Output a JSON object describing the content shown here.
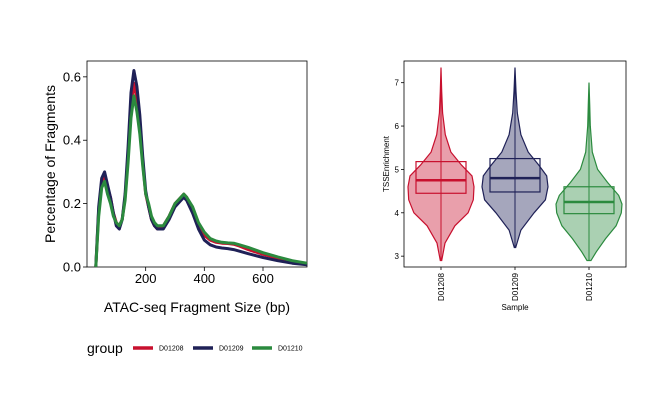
{
  "colors": {
    "D01208": "#c8102e",
    "D01209": "#1f2157",
    "D01210": "#2b8a3e"
  },
  "legend": {
    "title": "group",
    "items": [
      "D01208",
      "D01209",
      "D01210"
    ]
  },
  "chart_data": [
    {
      "type": "line",
      "title": "",
      "xlabel": "ATAC-seq Fragment Size (bp)",
      "ylabel": "Percentage of Fragments",
      "xlim": [
        0,
        750
      ],
      "ylim": [
        0,
        0.65
      ],
      "xticks": [
        "200",
        "400",
        "600"
      ],
      "yticks": [
        "0.0",
        "0.2",
        "0.4",
        "0.6"
      ],
      "x": [
        30,
        40,
        50,
        60,
        70,
        80,
        90,
        100,
        110,
        120,
        130,
        140,
        150,
        160,
        170,
        180,
        190,
        200,
        210,
        220,
        230,
        240,
        260,
        280,
        300,
        320,
        330,
        340,
        360,
        380,
        400,
        420,
        440,
        460,
        480,
        500,
        520,
        550,
        600,
        650,
        700,
        750
      ],
      "series": [
        {
          "name": "D01208",
          "values": [
            0.0,
            0.18,
            0.27,
            0.29,
            0.25,
            0.22,
            0.17,
            0.14,
            0.13,
            0.15,
            0.22,
            0.35,
            0.51,
            0.58,
            0.53,
            0.45,
            0.33,
            0.23,
            0.19,
            0.15,
            0.13,
            0.12,
            0.13,
            0.16,
            0.2,
            0.22,
            0.23,
            0.22,
            0.18,
            0.13,
            0.1,
            0.085,
            0.078,
            0.075,
            0.074,
            0.072,
            0.066,
            0.055,
            0.04,
            0.028,
            0.018,
            0.01
          ]
        },
        {
          "name": "D01209",
          "values": [
            0.0,
            0.19,
            0.28,
            0.3,
            0.26,
            0.22,
            0.17,
            0.13,
            0.12,
            0.15,
            0.23,
            0.38,
            0.55,
            0.62,
            0.57,
            0.48,
            0.35,
            0.24,
            0.19,
            0.15,
            0.13,
            0.12,
            0.12,
            0.15,
            0.19,
            0.21,
            0.22,
            0.21,
            0.17,
            0.12,
            0.085,
            0.07,
            0.063,
            0.06,
            0.058,
            0.055,
            0.05,
            0.042,
            0.03,
            0.02,
            0.012,
            0.007
          ]
        },
        {
          "name": "D01210",
          "values": [
            0.0,
            0.16,
            0.25,
            0.27,
            0.23,
            0.2,
            0.16,
            0.14,
            0.13,
            0.15,
            0.21,
            0.33,
            0.47,
            0.54,
            0.49,
            0.42,
            0.32,
            0.23,
            0.2,
            0.16,
            0.14,
            0.13,
            0.13,
            0.16,
            0.2,
            0.22,
            0.23,
            0.22,
            0.19,
            0.14,
            0.11,
            0.09,
            0.082,
            0.078,
            0.076,
            0.075,
            0.07,
            0.062,
            0.045,
            0.032,
            0.02,
            0.012
          ]
        }
      ]
    },
    {
      "type": "violin",
      "title": "",
      "xlabel": "Sample",
      "ylabel": "TSSEnrichment",
      "ylim": [
        2.75,
        7.5
      ],
      "yticks": [
        "3",
        "4",
        "5",
        "6",
        "7"
      ],
      "categories": [
        "D01208",
        "D01209",
        "D01210"
      ],
      "box": [
        {
          "q1": 4.45,
          "median": 4.75,
          "q3": 5.18
        },
        {
          "q1": 4.48,
          "median": 4.8,
          "q3": 5.25
        },
        {
          "q1": 3.98,
          "median": 4.25,
          "q3": 4.6
        }
      ],
      "range": [
        {
          "min": 2.9,
          "max": 7.35
        },
        {
          "min": 3.2,
          "max": 7.35
        },
        {
          "min": 2.9,
          "max": 7.0
        }
      ],
      "density_y": [
        [
          2.9,
          3.3,
          3.7,
          4.0,
          4.3,
          4.6,
          4.85,
          5.1,
          5.4,
          5.8,
          6.3,
          6.8,
          7.35
        ],
        [
          3.2,
          3.6,
          4.0,
          4.3,
          4.6,
          4.85,
          5.1,
          5.4,
          5.8,
          6.3,
          6.8,
          7.35
        ],
        [
          2.9,
          3.1,
          3.4,
          3.7,
          4.0,
          4.2,
          4.4,
          4.7,
          5.0,
          5.4,
          6.0,
          6.5,
          7.0
        ]
      ],
      "density_w": [
        [
          0.02,
          0.12,
          0.42,
          0.82,
          0.98,
          1.0,
          0.94,
          0.62,
          0.3,
          0.13,
          0.05,
          0.02,
          0.0
        ],
        [
          0.02,
          0.18,
          0.58,
          0.92,
          1.0,
          0.96,
          0.72,
          0.4,
          0.18,
          0.07,
          0.03,
          0.0
        ],
        [
          0.06,
          0.22,
          0.5,
          0.82,
          0.98,
          1.0,
          0.9,
          0.56,
          0.26,
          0.1,
          0.04,
          0.02,
          0.0
        ]
      ]
    }
  ]
}
